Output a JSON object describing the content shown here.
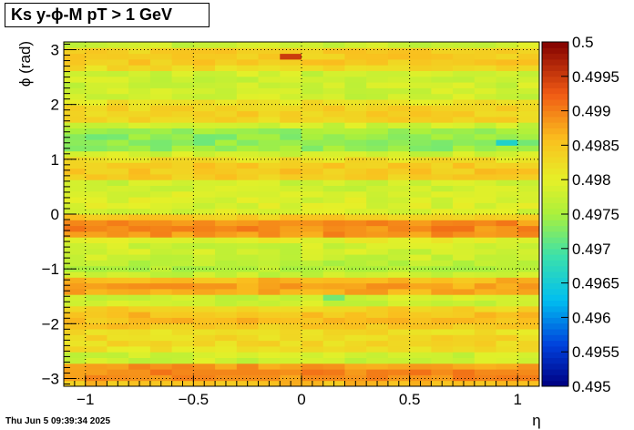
{
  "title": "Ks y-ϕ-M pT > 1 GeV",
  "timestamp": "Thu Jun  5 09:39:34 2025",
  "chart_data": {
    "type": "heatmap",
    "title": "Ks y-ϕ-M pT > 1 GeV",
    "xlabel": "η",
    "ylabel": "ϕ (rad)",
    "xlim": [
      -1.1,
      1.1
    ],
    "ylim": [
      -3.1416,
      3.1416
    ],
    "x_ticks": [
      -1,
      -0.5,
      0,
      0.5,
      1
    ],
    "x_tick_labels": [
      "−1",
      "−0.5",
      "0",
      "0.5",
      "1"
    ],
    "y_ticks": [
      -3,
      -2,
      -1,
      0,
      1,
      2,
      3
    ],
    "y_tick_labels": [
      "−3",
      "−2",
      "−1",
      "0",
      "1",
      "2",
      "3"
    ],
    "zlim": [
      0.495,
      0.5
    ],
    "z_ticks": [
      0.5,
      0.4995,
      0.499,
      0.4985,
      0.498,
      0.4975,
      0.497,
      0.4965,
      0.496,
      0.4955,
      0.495
    ],
    "z_tick_labels": [
      "0.5",
      "0.4995",
      "0.499",
      "0.4985",
      "0.498",
      "0.4975",
      "0.497",
      "0.4965",
      "0.496",
      "0.4955",
      "0.495"
    ],
    "grid": true,
    "colormap": "rainbow",
    "n_x_bins": 22,
    "n_y_bins": 60,
    "row_phi_centers": [
      -2.9,
      -2.3,
      -1.9,
      -1.3,
      -1.0,
      -0.65,
      -0.25,
      0.2,
      0.8,
      1.35,
      1.85,
      2.85
    ],
    "row_base_values": [
      0.499,
      0.4983,
      0.4986,
      0.4988,
      0.4976,
      0.4978,
      0.499,
      0.4979,
      0.4985,
      0.4973,
      0.4984,
      0.4985
    ],
    "hotspots": [
      {
        "eta": -0.05,
        "phi": 2.85,
        "value": 0.4995
      },
      {
        "eta": 0.15,
        "phi": -1.5,
        "value": 0.4972
      },
      {
        "eta": 0.95,
        "phi": 1.35,
        "value": 0.4966
      }
    ]
  }
}
